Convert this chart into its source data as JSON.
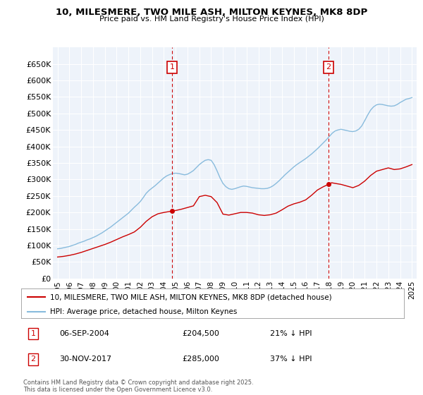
{
  "title": "10, MILESMERE, TWO MILE ASH, MILTON KEYNES, MK8 8DP",
  "subtitle": "Price paid vs. HM Land Registry's House Price Index (HPI)",
  "ylim": [
    0,
    700000
  ],
  "yticks": [
    0,
    50000,
    100000,
    150000,
    200000,
    250000,
    300000,
    350000,
    400000,
    450000,
    500000,
    550000,
    600000,
    650000
  ],
  "ytick_labels": [
    "£0",
    "£50K",
    "£100K",
    "£150K",
    "£200K",
    "£250K",
    "£300K",
    "£350K",
    "£400K",
    "£450K",
    "£500K",
    "£550K",
    "£600K",
    "£650K"
  ],
  "hpi_color": "#88bbdd",
  "price_color": "#cc0000",
  "vline_color": "#cc0000",
  "annotation_box_color": "#cc0000",
  "bg_plot": "#eef3fa",
  "bg_fig": "#ffffff",
  "grid_color": "#ffffff",
  "legend_label_price": "10, MILESMERE, TWO MILE ASH, MILTON KEYNES, MK8 8DP (detached house)",
  "legend_label_hpi": "HPI: Average price, detached house, Milton Keynes",
  "annotation1_label": "1",
  "annotation1_date": "06-SEP-2004",
  "annotation1_price": "£204,500",
  "annotation1_pct": "21% ↓ HPI",
  "annotation2_label": "2",
  "annotation2_date": "30-NOV-2017",
  "annotation2_price": "£285,000",
  "annotation2_pct": "37% ↓ HPI",
  "footer": "Contains HM Land Registry data © Crown copyright and database right 2025.\nThis data is licensed under the Open Government Licence v3.0.",
  "vline1_x": 2004.7,
  "vline2_x": 2017.92,
  "sale1_y": 204500,
  "sale2_y": 285000,
  "xlim_left": 1994.6,
  "xlim_right": 2025.4,
  "hpi_years": [
    1995.0,
    1995.25,
    1995.5,
    1995.75,
    1996.0,
    1996.25,
    1996.5,
    1996.75,
    1997.0,
    1997.25,
    1997.5,
    1997.75,
    1998.0,
    1998.25,
    1998.5,
    1998.75,
    1999.0,
    1999.25,
    1999.5,
    1999.75,
    2000.0,
    2000.25,
    2000.5,
    2000.75,
    2001.0,
    2001.25,
    2001.5,
    2001.75,
    2002.0,
    2002.25,
    2002.5,
    2002.75,
    2003.0,
    2003.25,
    2003.5,
    2003.75,
    2004.0,
    2004.25,
    2004.5,
    2004.75,
    2005.0,
    2005.25,
    2005.5,
    2005.75,
    2006.0,
    2006.25,
    2006.5,
    2006.75,
    2007.0,
    2007.25,
    2007.5,
    2007.75,
    2008.0,
    2008.25,
    2008.5,
    2008.75,
    2009.0,
    2009.25,
    2009.5,
    2009.75,
    2010.0,
    2010.25,
    2010.5,
    2010.75,
    2011.0,
    2011.25,
    2011.5,
    2011.75,
    2012.0,
    2012.25,
    2012.5,
    2012.75,
    2013.0,
    2013.25,
    2013.5,
    2013.75,
    2014.0,
    2014.25,
    2014.5,
    2014.75,
    2015.0,
    2015.25,
    2015.5,
    2015.75,
    2016.0,
    2016.25,
    2016.5,
    2016.75,
    2017.0,
    2017.25,
    2017.5,
    2017.75,
    2018.0,
    2018.25,
    2018.5,
    2018.75,
    2019.0,
    2019.25,
    2019.5,
    2019.75,
    2020.0,
    2020.25,
    2020.5,
    2020.75,
    2021.0,
    2021.25,
    2021.5,
    2021.75,
    2022.0,
    2022.25,
    2022.5,
    2022.75,
    2023.0,
    2023.25,
    2023.5,
    2023.75,
    2024.0,
    2024.25,
    2024.5,
    2024.75,
    2025.0
  ],
  "hpi_values": [
    90000,
    91000,
    93000,
    95000,
    97000,
    100000,
    103000,
    107000,
    110000,
    113000,
    117000,
    120000,
    124000,
    128000,
    133000,
    138000,
    144000,
    150000,
    156000,
    163000,
    170000,
    177000,
    184000,
    191000,
    198000,
    207000,
    216000,
    224000,
    233000,
    245000,
    258000,
    267000,
    274000,
    281000,
    289000,
    297000,
    305000,
    311000,
    315000,
    318000,
    319000,
    318000,
    316000,
    314000,
    316000,
    321000,
    327000,
    336000,
    345000,
    352000,
    358000,
    360000,
    358000,
    345000,
    326000,
    305000,
    288000,
    278000,
    272000,
    270000,
    272000,
    275000,
    278000,
    280000,
    279000,
    277000,
    275000,
    274000,
    273000,
    272000,
    272000,
    273000,
    276000,
    281000,
    288000,
    296000,
    305000,
    314000,
    322000,
    330000,
    338000,
    345000,
    351000,
    357000,
    363000,
    370000,
    377000,
    385000,
    393000,
    402000,
    411000,
    420000,
    430000,
    440000,
    447000,
    450000,
    452000,
    450000,
    448000,
    446000,
    445000,
    447000,
    452000,
    462000,
    478000,
    495000,
    510000,
    520000,
    526000,
    528000,
    527000,
    525000,
    523000,
    522000,
    523000,
    527000,
    533000,
    538000,
    543000,
    545000,
    548000
  ],
  "price_years": [
    1995.0,
    1995.5,
    1996.0,
    1996.5,
    1997.0,
    1997.5,
    1998.0,
    1998.5,
    1999.0,
    1999.5,
    2000.0,
    2000.5,
    2001.0,
    2001.5,
    2002.0,
    2002.5,
    2003.0,
    2003.5,
    2004.0,
    2004.5,
    2004.7,
    2005.0,
    2005.5,
    2006.0,
    2006.5,
    2007.0,
    2007.5,
    2008.0,
    2008.5,
    2009.0,
    2009.5,
    2010.0,
    2010.5,
    2011.0,
    2011.5,
    2012.0,
    2012.5,
    2013.0,
    2013.5,
    2014.0,
    2014.5,
    2015.0,
    2015.5,
    2016.0,
    2016.5,
    2017.0,
    2017.5,
    2017.92,
    2018.2,
    2018.5,
    2019.0,
    2019.5,
    2020.0,
    2020.5,
    2021.0,
    2021.5,
    2022.0,
    2022.5,
    2023.0,
    2023.5,
    2024.0,
    2024.5,
    2025.0
  ],
  "price_values": [
    65000,
    67000,
    70000,
    74000,
    79000,
    85000,
    91000,
    97000,
    103000,
    110000,
    118000,
    126000,
    133000,
    141000,
    155000,
    173000,
    187000,
    196000,
    200000,
    203000,
    204500,
    206000,
    210000,
    215000,
    220000,
    248000,
    252000,
    248000,
    230000,
    195000,
    192000,
    196000,
    200000,
    200000,
    198000,
    193000,
    191000,
    193000,
    198000,
    208000,
    219000,
    226000,
    231000,
    238000,
    252000,
    268000,
    278000,
    285000,
    290000,
    288000,
    285000,
    280000,
    275000,
    282000,
    295000,
    312000,
    325000,
    330000,
    335000,
    330000,
    332000,
    338000,
    345000
  ]
}
